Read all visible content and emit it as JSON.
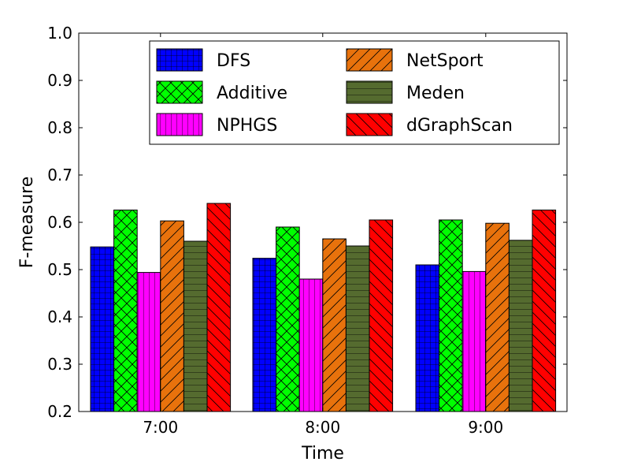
{
  "chart_data": {
    "type": "bar",
    "xlabel": "Time",
    "ylabel": "F-measure",
    "ylim": [
      0.2,
      1.0
    ],
    "yticks": [
      "0.2",
      "0.3",
      "0.4",
      "0.5",
      "0.6",
      "0.7",
      "0.8",
      "0.9",
      "1.0"
    ],
    "categories": [
      "7:00",
      "8:00",
      "9:00"
    ],
    "grid": false,
    "legend_position": "top-right",
    "series": [
      {
        "name": "DFS",
        "values": [
          0.548,
          0.524,
          0.51
        ],
        "color": "#0000ff",
        "pattern": "grid"
      },
      {
        "name": "Additive",
        "values": [
          0.626,
          0.59,
          0.605
        ],
        "color": "#00ff00",
        "pattern": "crosshatch"
      },
      {
        "name": "NPHGS",
        "values": [
          0.494,
          0.48,
          0.496
        ],
        "color": "#ff00ff",
        "pattern": "vertical"
      },
      {
        "name": "NetSport",
        "values": [
          0.603,
          0.565,
          0.598
        ],
        "color": "#e8720c",
        "pattern": "forward-diagonal"
      },
      {
        "name": "Meden",
        "values": [
          0.56,
          0.55,
          0.562
        ],
        "color": "#556b2f",
        "pattern": "horizontal"
      },
      {
        "name": "dGraphScan",
        "values": [
          0.64,
          0.605,
          0.626
        ],
        "color": "#ff0000",
        "pattern": "back-diagonal"
      }
    ]
  }
}
